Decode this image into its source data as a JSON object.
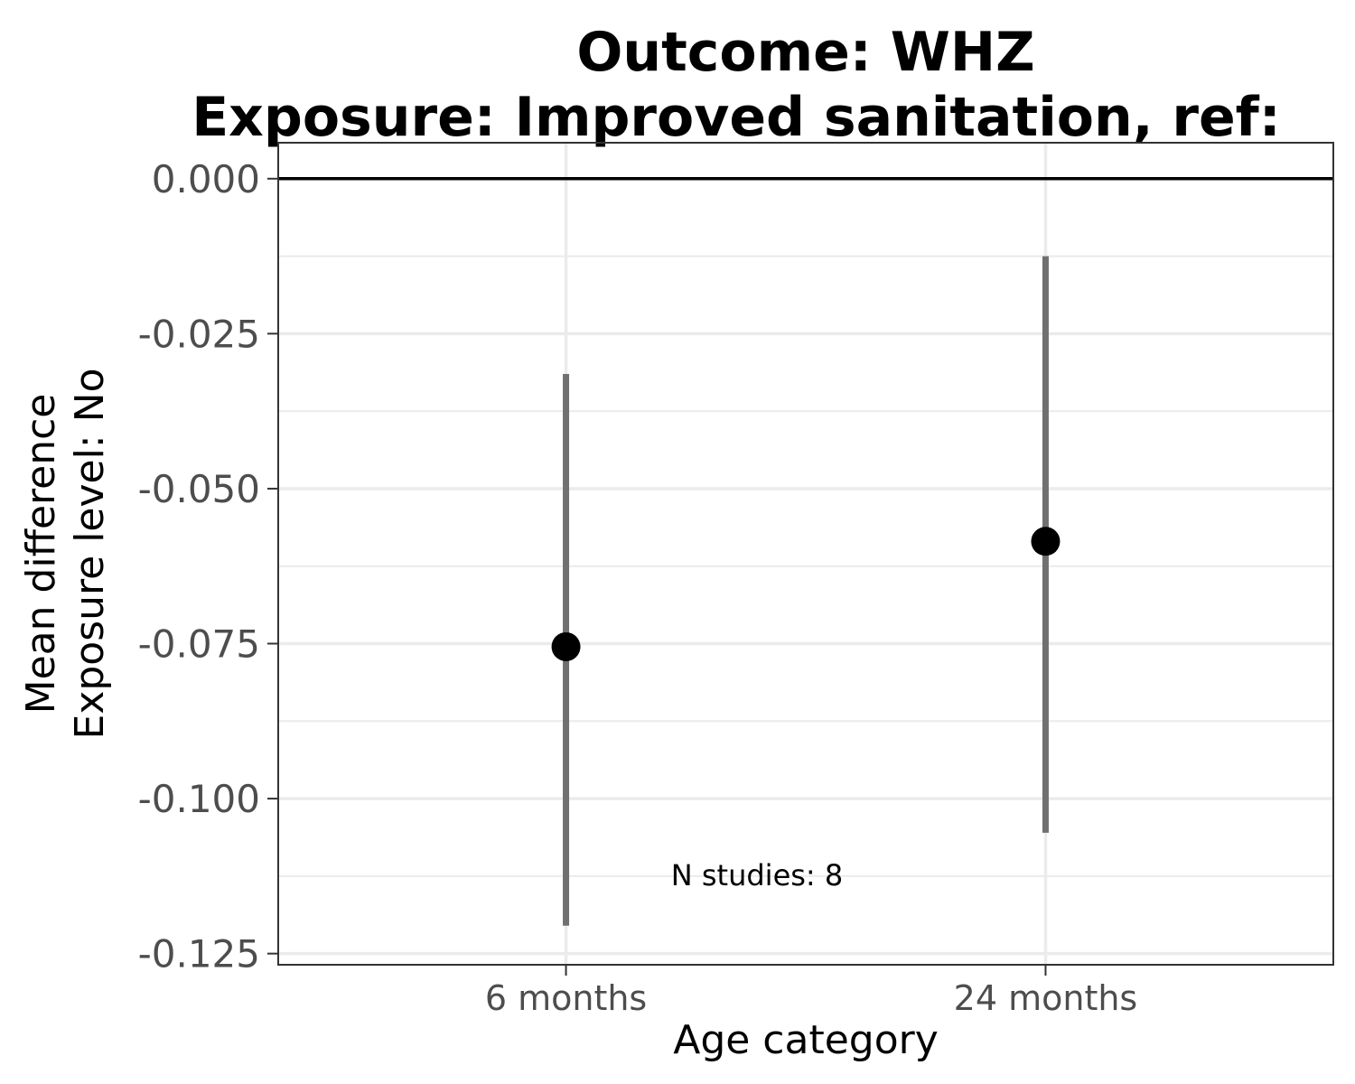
{
  "chart_data": {
    "type": "scatter",
    "title_line1": "Outcome: WHZ",
    "title_line2": "Exposure: Improved sanitation, ref:",
    "xlabel": "Age category",
    "ylabel_line1": "Mean difference",
    "ylabel_line2": "Exposure level: No",
    "categories": [
      "6 months",
      "24 months"
    ],
    "estimates": [
      -0.0755,
      -0.0585
    ],
    "ci_lower": [
      -0.1205,
      -0.1055
    ],
    "ci_upper": [
      -0.0315,
      -0.0125
    ],
    "ylim": [
      -0.1268,
      0.0058
    ],
    "yticks": [
      0.0,
      -0.025,
      -0.05,
      -0.075,
      -0.1,
      -0.125
    ],
    "ytick_labels": [
      "0.000",
      "-0.025",
      "-0.050",
      "-0.075",
      "-0.100",
      "-0.125"
    ],
    "reference_line": 0.0,
    "annotation": "N studies: 8",
    "grid": true,
    "colors": {
      "ci": "#707070",
      "point": "#000000",
      "grid": "#ebebeb",
      "border": "#333333"
    }
  }
}
